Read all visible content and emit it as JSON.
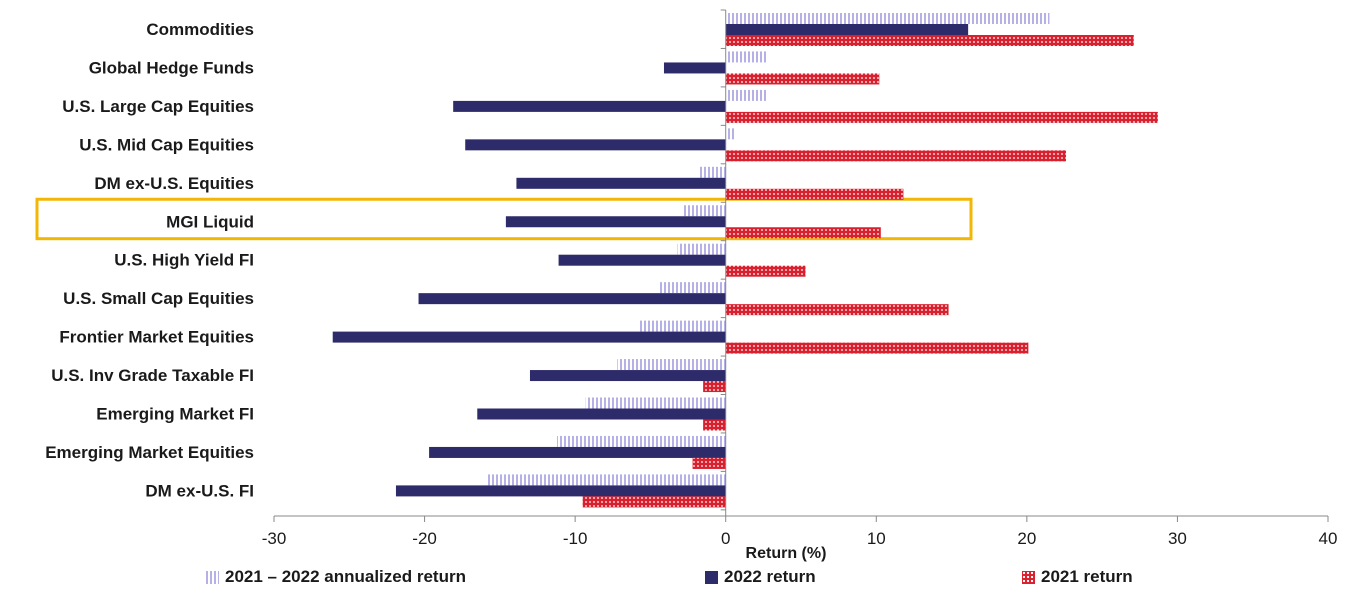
{
  "chart_data": {
    "type": "bar",
    "orientation": "horizontal",
    "categories": [
      "Commodities",
      "Global Hedge Funds",
      "U.S. Large Cap Equities",
      "U.S. Mid Cap Equities",
      "DM ex-U.S. Equities",
      "MGI Liquid",
      "U.S. High Yield FI",
      "U.S. Small Cap Equities",
      "Frontier Market Equities",
      "U.S. Inv Grade Taxable FI",
      "Emerging Market FI",
      "Emerging Market Equities",
      "DM ex-U.S. FI"
    ],
    "series": [
      {
        "name": "2021 – 2022 annualized return",
        "values": [
          21.5,
          2.8,
          2.7,
          0.6,
          -1.8,
          -2.9,
          -3.2,
          -4.4,
          -5.7,
          -7.2,
          -9.3,
          -11.2,
          -15.9
        ]
      },
      {
        "name": "2022 return",
        "values": [
          16.1,
          -4.1,
          -18.1,
          -17.3,
          -13.9,
          -14.6,
          -11.1,
          -20.4,
          -26.1,
          -13.0,
          -16.5,
          -19.7,
          -21.9
        ]
      },
      {
        "name": "2021 return",
        "values": [
          27.1,
          10.2,
          28.7,
          22.6,
          11.8,
          10.3,
          5.3,
          14.8,
          20.1,
          -1.5,
          -1.5,
          -2.2,
          -9.5
        ]
      }
    ],
    "xlabel": "Return (%)",
    "ylabel": "",
    "xlim": [
      -30,
      40
    ],
    "xticks": [
      "-30",
      "-20",
      "-10",
      "0",
      "10",
      "20",
      "30",
      "40"
    ],
    "highlighted_category": "MGI Liquid",
    "legend_position": "bottom",
    "grid": false,
    "colors": {
      "annualized": "#b5b0e6",
      "y2022": "#2e2b6b",
      "y2021": "#d9202e",
      "highlight": "#f2b705",
      "axis": "#888888"
    }
  },
  "legend": {
    "item1": "2021 – 2022 annualized return",
    "item2": "2022 return",
    "item3": "2021 return"
  }
}
